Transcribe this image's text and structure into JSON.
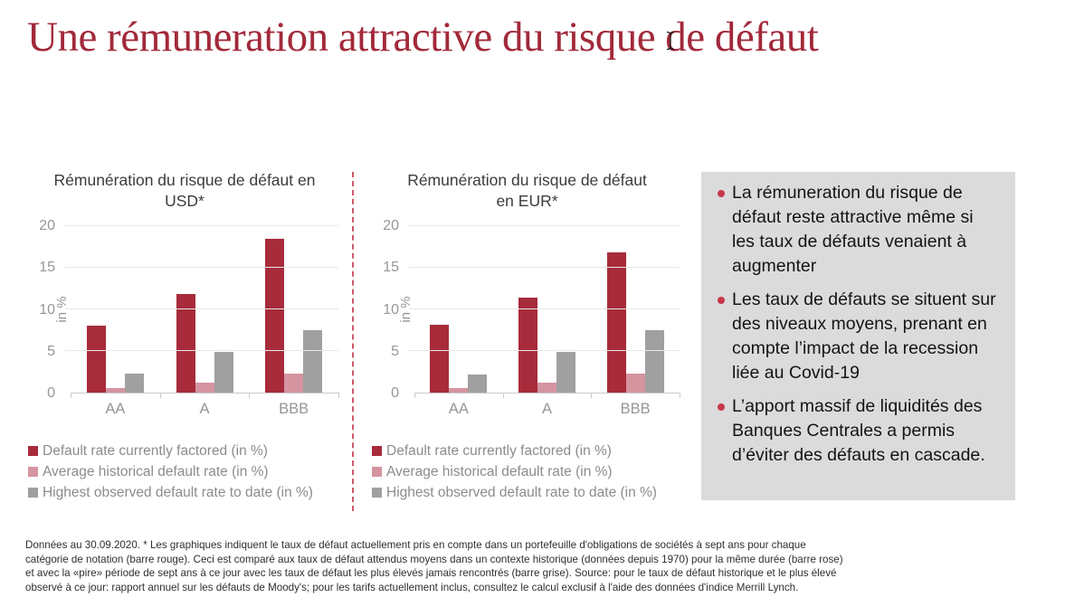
{
  "slide": {
    "title": "Une rémuneration attractive du risque de défaut"
  },
  "colors": {
    "title_red": "#A2293A",
    "bar_red": "#A72B3B",
    "bar_pink": "#D494A0",
    "bar_gray": "#A0A0A0",
    "panel_bg": "#DBDBDB",
    "divider_red": "#CC5A6C",
    "bullet_dot_red": "#C8374B"
  },
  "chart_data": [
    {
      "type": "bar",
      "title": "Rémunération du risque de défaut en USD*",
      "title_lines": [
        "Rémunération du risque de défaut en",
        "USD*"
      ],
      "categories": [
        "AA",
        "A",
        "BBB"
      ],
      "series": [
        {
          "name": "Default rate currently factored (in %)",
          "color": "#A72B3B",
          "values": [
            8.0,
            11.8,
            18.5
          ]
        },
        {
          "name": "Average historical default rate (in %)",
          "color": "#D494A0",
          "values": [
            0.5,
            1.2,
            2.3
          ]
        },
        {
          "name": "Highest observed default rate to date (in %)",
          "color": "#A0A0A0",
          "values": [
            2.3,
            4.9,
            7.5
          ]
        }
      ],
      "xlabel": "",
      "ylabel": "in %",
      "ylim": [
        0,
        20
      ],
      "yticks": [
        0,
        5,
        10,
        15,
        20
      ],
      "grid": true,
      "legend_position": "bottom-left"
    },
    {
      "type": "bar",
      "title": "Rémunération du risque de défaut en EUR*",
      "title_lines": [
        "Rémunération du risque de défaut",
        "en EUR*"
      ],
      "categories": [
        "AA",
        "A",
        "BBB"
      ],
      "series": [
        {
          "name": "Default rate currently factored (in %)",
          "color": "#A72B3B",
          "values": [
            8.1,
            11.4,
            16.9
          ]
        },
        {
          "name": "Average historical default rate (in %)",
          "color": "#D494A0",
          "values": [
            0.5,
            1.2,
            2.3
          ]
        },
        {
          "name": "Highest observed default rate to date (in %)",
          "color": "#A0A0A0",
          "values": [
            2.2,
            4.9,
            7.5
          ]
        }
      ],
      "xlabel": "",
      "ylabel": "in %",
      "ylim": [
        0,
        20
      ],
      "yticks": [
        0,
        5,
        10,
        15,
        20
      ],
      "grid": true,
      "legend_position": "bottom-left"
    }
  ],
  "panel": {
    "bullets": [
      "La rémuneration du risque de défaut reste attractive même si les taux de défauts venaient à augmenter",
      "Les taux de défauts se situent sur des niveaux moyens, prenant en compte l’impact de la recession liée au Covid-19",
      "L’apport massif de liquidités des Banques Centrales a permis d’éviter des défauts en cascade."
    ]
  },
  "footer": {
    "lines": [
      "Données au 30.09.2020. * Les graphiques indiquent le taux de défaut actuellement pris en compte dans un portefeuille d'obligations de sociétés à sept ans pour chaque",
      "catégorie de notation (barre rouge). Ceci est comparé aux taux de défaut attendus moyens dans un contexte historique (données depuis 1970) pour la même durée (barre rose)",
      "et avec la «pire» période de sept ans à ce jour avec les taux de défaut les plus élevés jamais rencontrés (barre grise). Source: pour le taux de défaut historique et le plus élevé",
      "observé à ce jour: rapport annuel sur les défauts de Moody's; pour les tarifs actuellement inclus, consultez le calcul exclusif à l'aide des données d'indice Merrill Lynch."
    ]
  }
}
